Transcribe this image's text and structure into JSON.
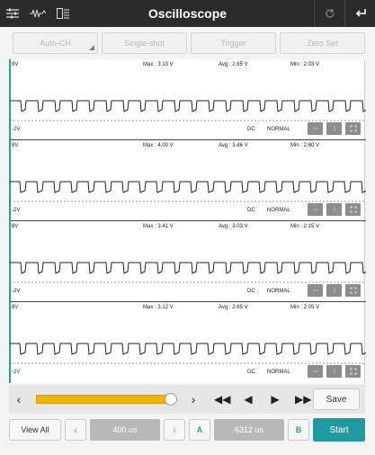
{
  "topbar": {
    "title": "Oscilloscope",
    "icons": [
      "settings-sliders-icon",
      "waveform-icon",
      "save-layout-icon",
      "refresh-icon",
      "back-icon"
    ]
  },
  "modes": {
    "auto_ch": "Auto-CH",
    "single_shot": "Single-shot",
    "trigger": "Trigger",
    "zero_set": "Zero Set"
  },
  "channels": [
    {
      "top": "8V",
      "bottom": "-2V",
      "max": "Max : 3.13 V",
      "avg": "Avg : 2.65 V",
      "min": "Min : 2.03 V",
      "coupling": "DC",
      "mode": "NORMAL"
    },
    {
      "top": "8V",
      "bottom": "-2V",
      "max": "Max : 4.00 V",
      "avg": "Avg : 3.46 V",
      "min": "Min : 2.60 V",
      "coupling": "DC",
      "mode": "NORMAL"
    },
    {
      "top": "8V",
      "bottom": "-2V",
      "max": "Max : 3.41 V",
      "avg": "Avg : 3.03 V",
      "min": "Min : 2.15 V",
      "coupling": "DC",
      "mode": "NORMAL"
    },
    {
      "top": "8V",
      "bottom": "-2V",
      "max": "Max : 3.12 V",
      "avg": "Avg : 2.65 V",
      "min": "Min : 2.05 V",
      "coupling": "DC",
      "mode": "NORMAL"
    }
  ],
  "playback": {
    "save": "Save",
    "position": 0.97
  },
  "bottom": {
    "view_all": "View All",
    "timebase": "400 us",
    "cursor_a": "A",
    "cursor_value": "6312 us",
    "cursor_b": "B",
    "start": "Start"
  },
  "colors": {
    "topbar": "#2b2b2b",
    "accent": "#1f9aa0",
    "slider": "#f0b400"
  }
}
